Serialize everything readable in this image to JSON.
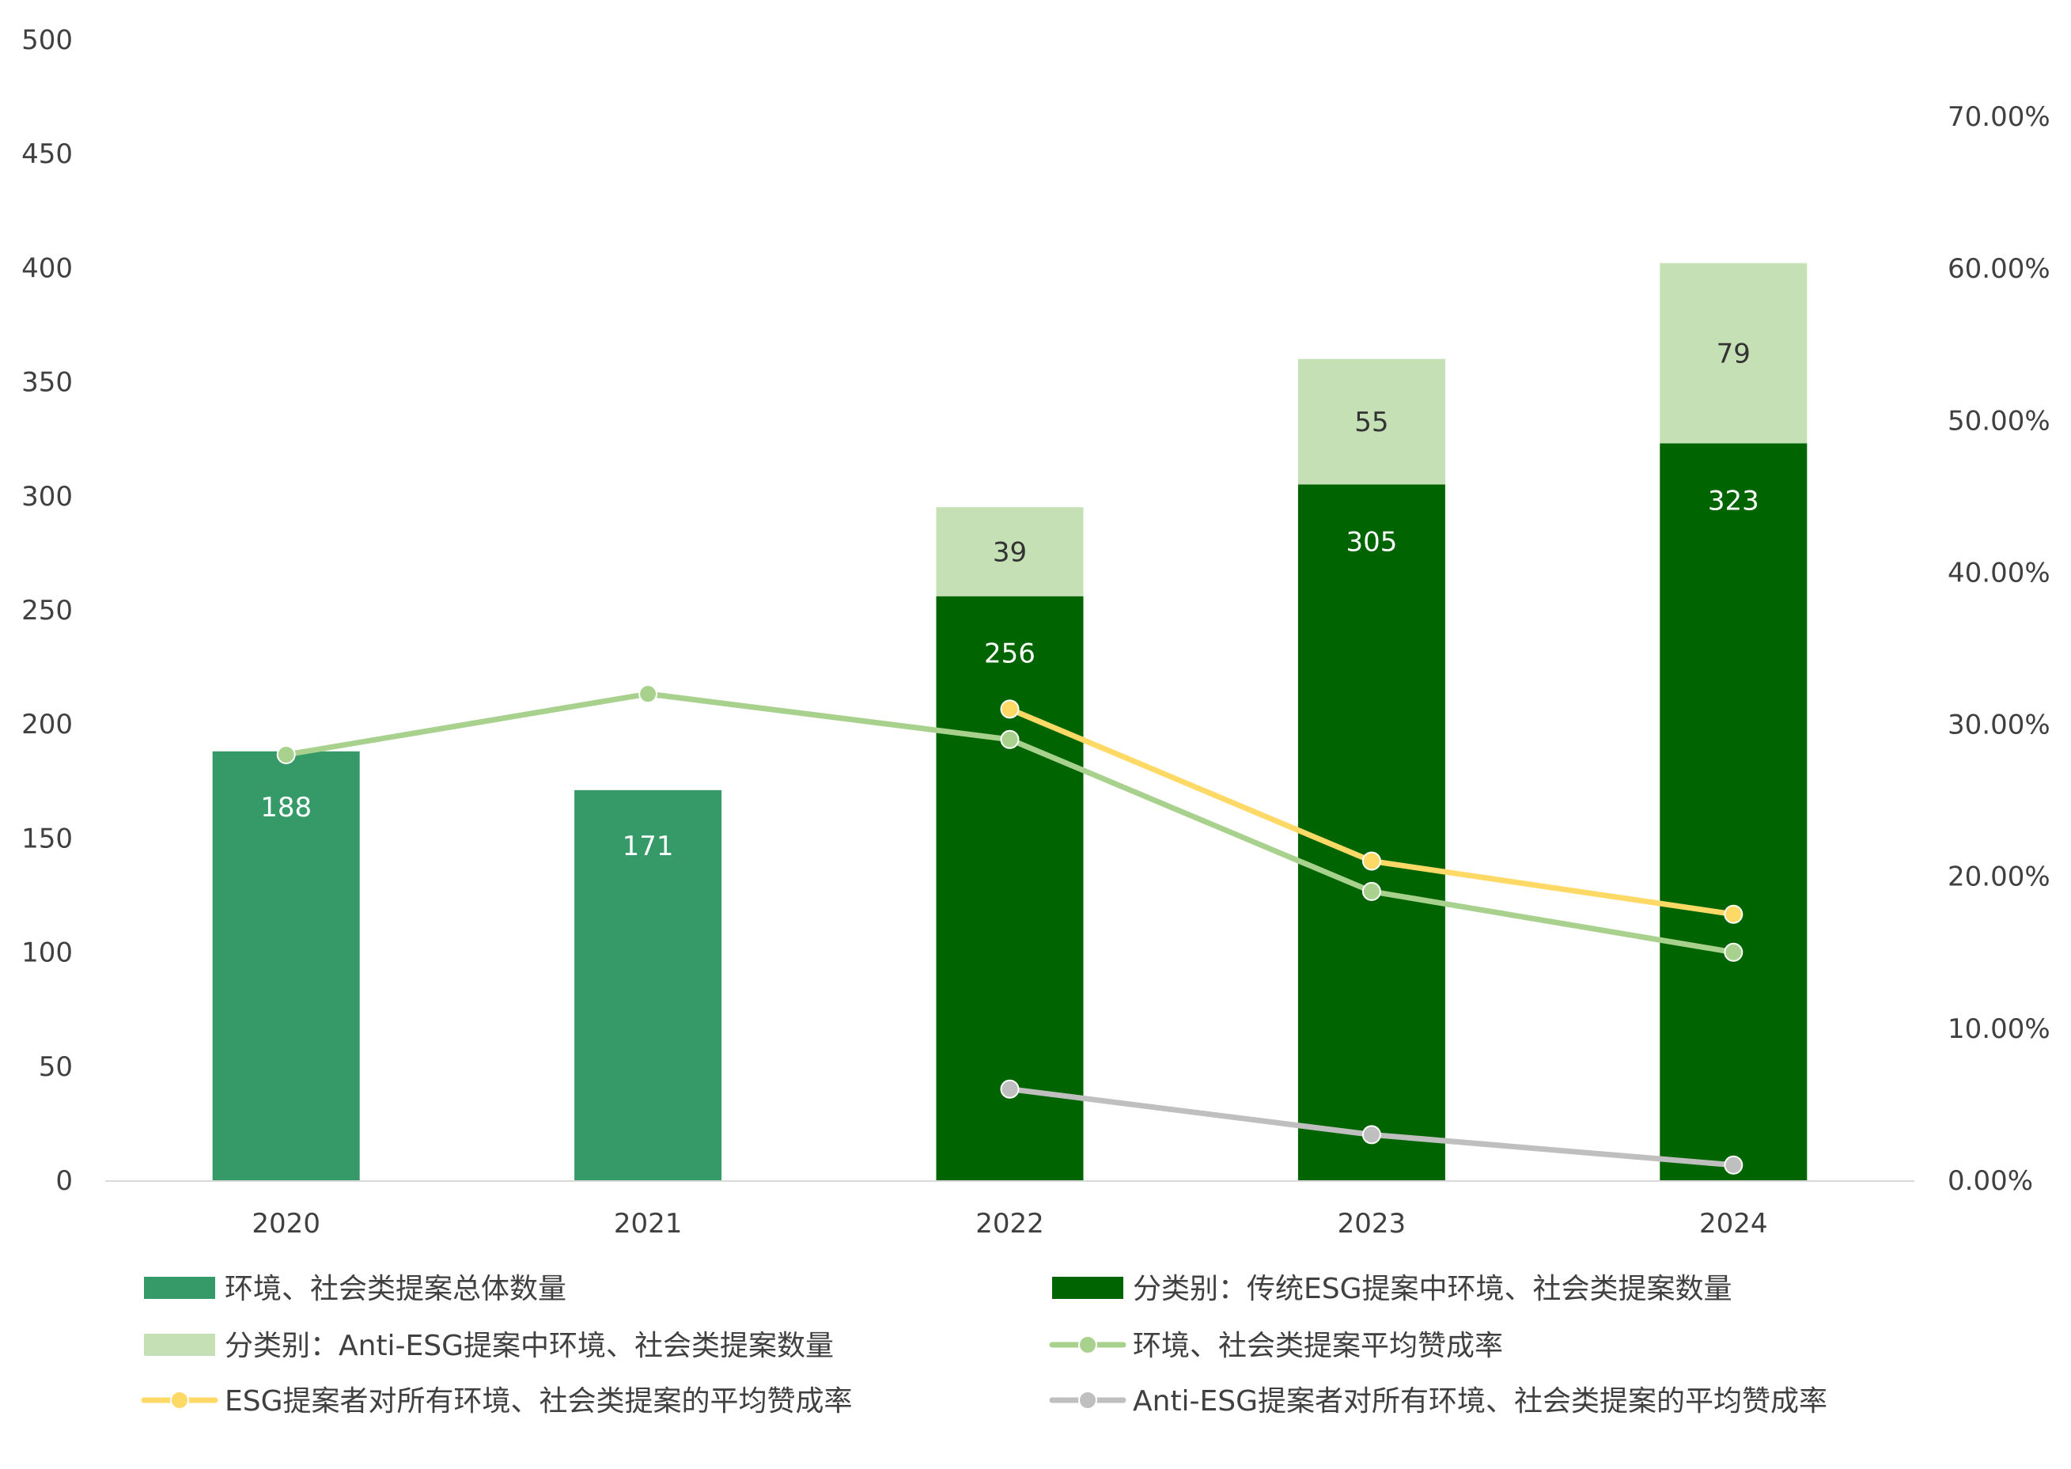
{
  "chart_data": {
    "type": "bar",
    "categories": [
      "2020",
      "2021",
      "2022",
      "2023",
      "2024"
    ],
    "y_left": {
      "ylim": [
        0,
        500
      ],
      "ticks": [
        0,
        50,
        100,
        150,
        200,
        250,
        300,
        350,
        400,
        450,
        500
      ]
    },
    "y_right": {
      "ylim": [
        0,
        0.75
      ],
      "ticks": [
        "0.00%",
        "10.00%",
        "20.00%",
        "30.00%",
        "40.00%",
        "50.00%",
        "60.00%",
        "70.00%"
      ],
      "tick_values": [
        0,
        0.1,
        0.2,
        0.3,
        0.4,
        0.5,
        0.6,
        0.7
      ]
    },
    "bar_series": [
      {
        "name": "环境、社会类提案总体数量",
        "color": "#359A68",
        "values": [
          188,
          171,
          null,
          null,
          null
        ],
        "labels": [
          "188",
          "171",
          "",
          "",
          ""
        ],
        "label_color": "#FFFFFF"
      },
      {
        "name": "分类别：传统ESG提案中环境、社会类提案数量",
        "color": "#006400",
        "values": [
          null,
          null,
          256,
          305,
          323
        ],
        "labels": [
          "",
          "",
          "256",
          "305",
          "323"
        ],
        "label_color": "#FFFFFF"
      },
      {
        "name": "分类别：Anti-ESG提案中环境、社会类提案数量",
        "color": "#C5E0B4",
        "values": [
          null,
          null,
          39,
          55,
          79
        ],
        "labels": [
          "",
          "",
          "39",
          "55",
          "79"
        ],
        "label_color": "#333333"
      }
    ],
    "line_series": [
      {
        "name": "环境、社会类提案平均赞成率",
        "color": "#A9D18E",
        "values": [
          0.28,
          0.32,
          0.29,
          0.19,
          0.15
        ]
      },
      {
        "name": "ESG提案者对所有环境、社会类提案的平均赞成率",
        "color": "#FFD966",
        "values": [
          null,
          null,
          0.31,
          0.21,
          0.175
        ]
      },
      {
        "name": "Anti-ESG提案者对所有环境、社会类提案的平均赞成率",
        "color": "#BFBFBF",
        "values": [
          null,
          null,
          0.06,
          0.03,
          0.01
        ]
      }
    ],
    "legend": {
      "placement": "bottom",
      "items": [
        {
          "name": "环境、社会类提案总体数量",
          "kind": "bar",
          "color": "#359A68"
        },
        {
          "name": "分类别：传统ESG提案中环境、社会类提案数量",
          "kind": "bar",
          "color": "#006400"
        },
        {
          "name": "分类别：Anti-ESG提案中环境、社会类提案数量",
          "kind": "bar",
          "color": "#C5E0B4"
        },
        {
          "name": "环境、社会类提案平均赞成率",
          "kind": "line",
          "color": "#A9D18E"
        },
        {
          "name": "ESG提案者对所有环境、社会类提案的平均赞成率",
          "kind": "line",
          "color": "#FFD966"
        },
        {
          "name": "Anti-ESG提案者对所有环境、社会类提案的平均赞成率",
          "kind": "line",
          "color": "#BFBFBF"
        }
      ]
    },
    "grid": false
  }
}
